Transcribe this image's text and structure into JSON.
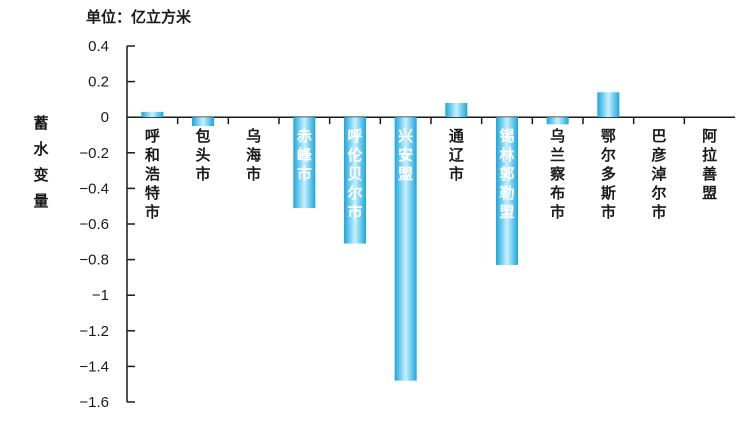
{
  "chart_data": {
    "type": "bar",
    "unit_label": "单位：亿立方米",
    "ylabel": "蓄水变量",
    "ylim": [
      -1.6,
      0.4
    ],
    "yticks": [
      0.4,
      0.2,
      0,
      -0.2,
      -0.4,
      -0.6,
      -0.8,
      -1,
      -1.2,
      -1.4,
      -1.6
    ],
    "ytick_labels": [
      "0.4",
      "0.2",
      "0",
      "−0.2",
      "−0.4",
      "−0.6",
      "−0.8",
      "−1",
      "−1.2",
      "−1.4",
      "−1.6"
    ],
    "categories": [
      "呼和浩特市",
      "包头市",
      "乌海市",
      "赤峰市",
      "呼伦贝尔市",
      "兴安盟",
      "通辽市",
      "锡林郭勒盟",
      "乌兰察布市",
      "鄂尔多斯市",
      "巴彦淖尔市",
      "阿拉善盟"
    ],
    "values": [
      0.03,
      -0.05,
      0,
      -0.51,
      -0.71,
      -1.48,
      0.08,
      -0.83,
      -0.04,
      0.14,
      0,
      0
    ],
    "bar_color": "#29b8e8",
    "legend": "none",
    "grid": false
  }
}
